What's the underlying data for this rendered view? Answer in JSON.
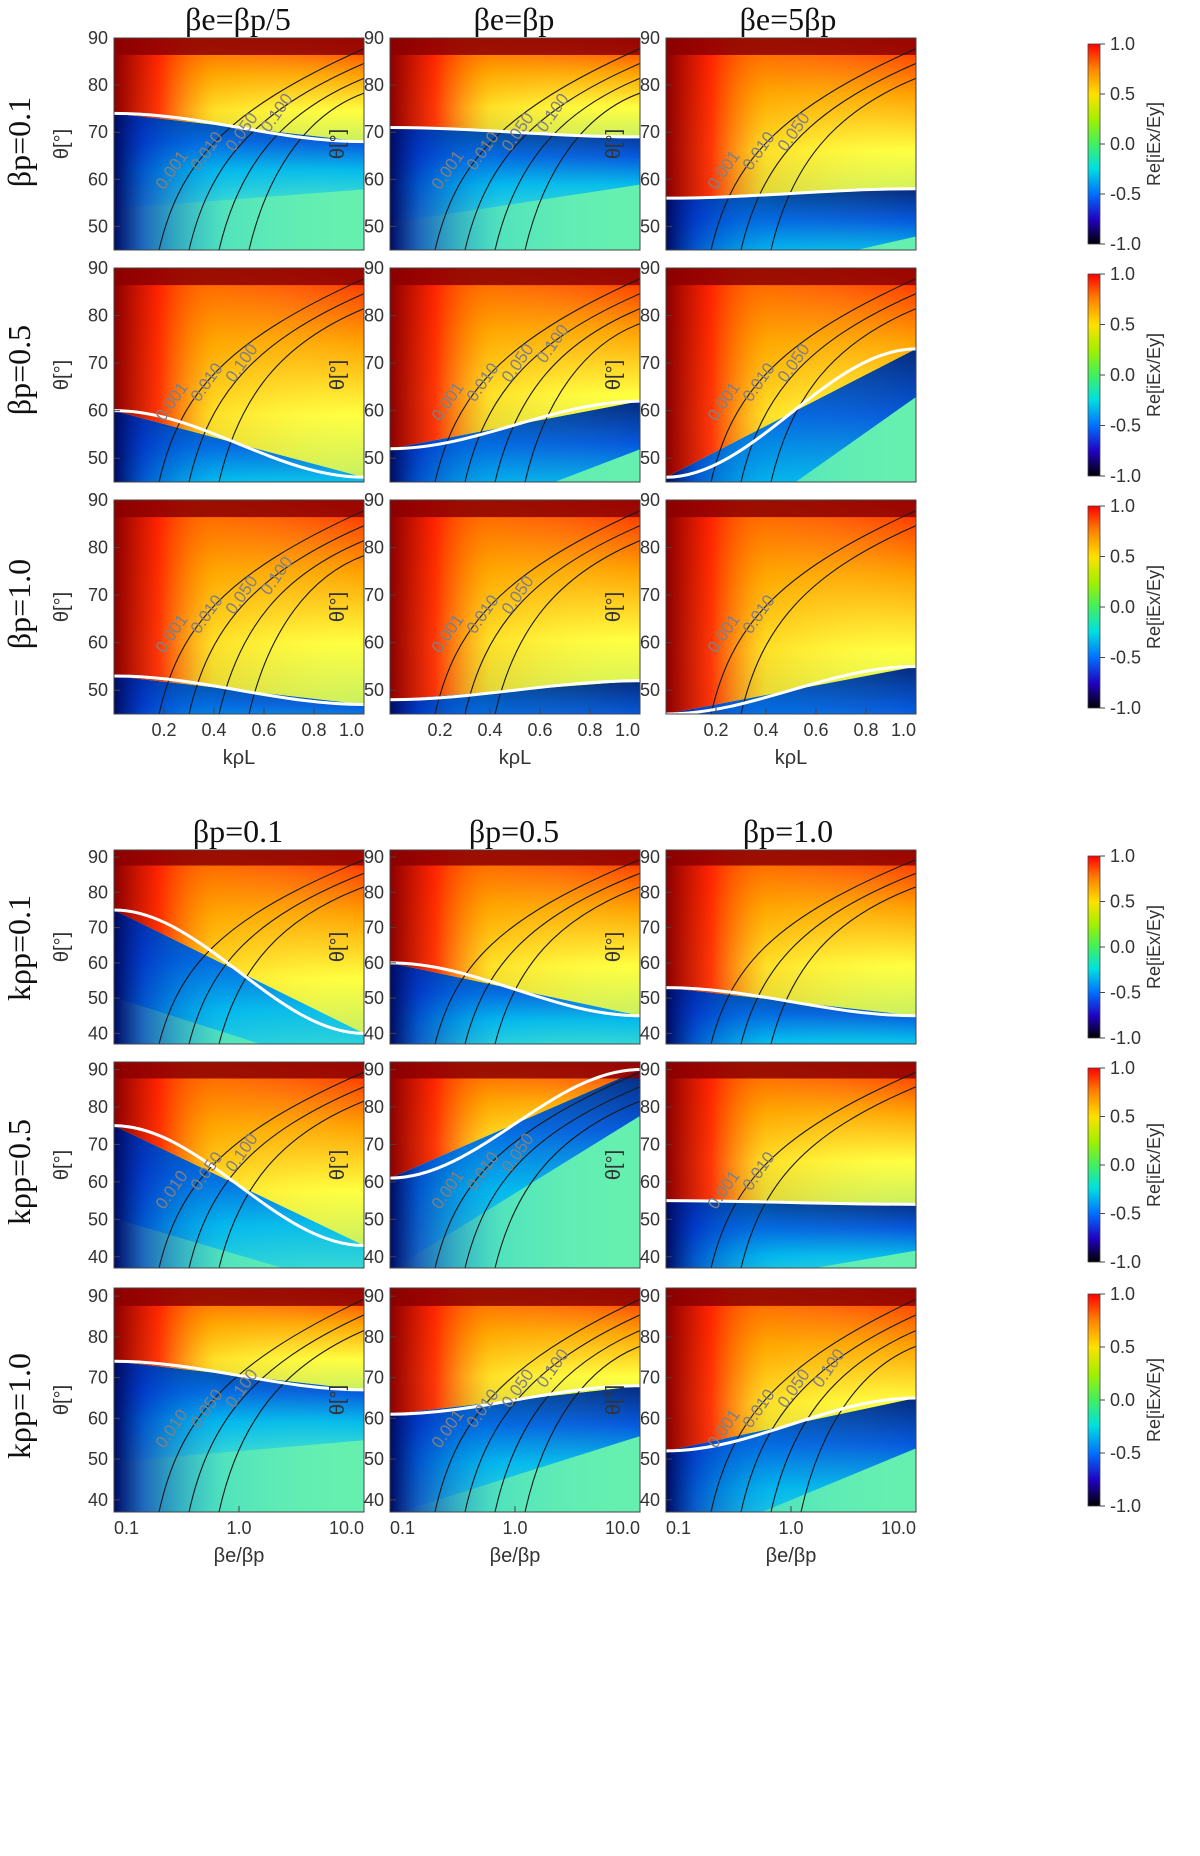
{
  "chart_data": {
    "type": "heatmap",
    "quantity_label": "Re[iEx/Ey]",
    "colorbar_ticks": [
      "1.0",
      "0.5",
      "0.0",
      "-0.5",
      "-1.0"
    ],
    "colorbar_range": [
      -1.0,
      1.0
    ],
    "colors": {
      "max": "#8b0000",
      "high": "#ff3000",
      "mid_high": "#ffe020",
      "neutral": "#9cf060",
      "zero": "#66f0b0",
      "low": "#00c8f0",
      "min_blue": "#00207a",
      "min": "#000000"
    },
    "theta_ticks_top": [
      "90",
      "80",
      "70",
      "60",
      "50"
    ],
    "theta_ticks_bottom": [
      "90",
      "80",
      "70",
      "60",
      "50",
      "40"
    ],
    "top_block": {
      "x_label": "kρL",
      "x_ticks": [
        "0.2",
        "0.4",
        "0.6",
        "0.8",
        "1.0"
      ],
      "y_label": "θ[°]",
      "columns": [
        "βe=βp/5",
        "βe=βp",
        "βe=5βp"
      ],
      "rows": [
        "βp=0.1",
        "βp=0.5",
        "βp=1.0"
      ],
      "y_range": [
        45,
        90
      ],
      "x_range": [
        0,
        1.0
      ],
      "panels": [
        {
          "zero_theta_low": 74,
          "zero_theta_high": 68,
          "labels": [
            "0.001",
            "0.010",
            "0.050",
            "0.100"
          ]
        },
        {
          "zero_theta_low": 71,
          "zero_theta_high": 69,
          "labels": [
            "0.001",
            "0.010",
            "0.050",
            "0.100"
          ]
        },
        {
          "zero_theta_low": 56,
          "zero_theta_high": 58,
          "labels": [
            "0.001",
            "0.010",
            "0.050"
          ]
        },
        {
          "zero_theta_low": 60,
          "zero_theta_high": 46,
          "labels": [
            "0.001",
            "0.010",
            "0.100"
          ]
        },
        {
          "zero_theta_low": 52,
          "zero_theta_high": 62,
          "labels": [
            "0.001",
            "0.010",
            "0.050",
            "0.100"
          ]
        },
        {
          "zero_theta_low": 46,
          "zero_theta_high": 73,
          "labels": [
            "0.001",
            "0.010",
            "0.050"
          ]
        },
        {
          "zero_theta_low": 53,
          "zero_theta_high": 47,
          "labels": [
            "0.001",
            "0.010",
            "0.050",
            "0.100"
          ]
        },
        {
          "zero_theta_low": 48,
          "zero_theta_high": 52,
          "labels": [
            "0.001",
            "0.010",
            "0.050"
          ]
        },
        {
          "zero_theta_low": 45,
          "zero_theta_high": 55,
          "labels": [
            "0.001",
            "0.010"
          ]
        }
      ]
    },
    "bottom_block": {
      "x_label": "βe/βp",
      "x_ticks": [
        "0.1",
        "1.0",
        "10.0"
      ],
      "y_label": "θ[°]",
      "columns": [
        "βp=0.1",
        "βp=0.5",
        "βp=1.0"
      ],
      "rows": [
        "kρp=0.1",
        "kρp=0.5",
        "kρp=1.0"
      ],
      "y_range": [
        37,
        92
      ],
      "x_range": [
        0.1,
        10.0
      ],
      "x_scale": "log",
      "panels": [
        {
          "zero_theta_low": 75,
          "zero_theta_high": 40,
          "labels": []
        },
        {
          "zero_theta_low": 60,
          "zero_theta_high": 45,
          "labels": []
        },
        {
          "zero_theta_low": 53,
          "zero_theta_high": 45,
          "labels": []
        },
        {
          "zero_theta_low": 75,
          "zero_theta_high": 43,
          "labels": [
            "0.010",
            "0.050",
            "0.100"
          ]
        },
        {
          "zero_theta_low": 61,
          "zero_theta_high": 90,
          "labels": [
            "0.001",
            "0.010",
            "0.050"
          ]
        },
        {
          "zero_theta_low": 55,
          "zero_theta_high": 54,
          "labels": [
            "0.001",
            "0.010"
          ]
        },
        {
          "zero_theta_low": 74,
          "zero_theta_high": 67,
          "labels": [
            "0.010",
            "0.050",
            "0.100"
          ]
        },
        {
          "zero_theta_low": 61,
          "zero_theta_high": 68,
          "labels": [
            "0.001",
            "0.010",
            "0.050",
            "0.100"
          ]
        },
        {
          "zero_theta_low": 52,
          "zero_theta_high": 65,
          "labels": [
            "0.001",
            "0.010",
            "0.050",
            "0.100"
          ]
        }
      ]
    }
  }
}
